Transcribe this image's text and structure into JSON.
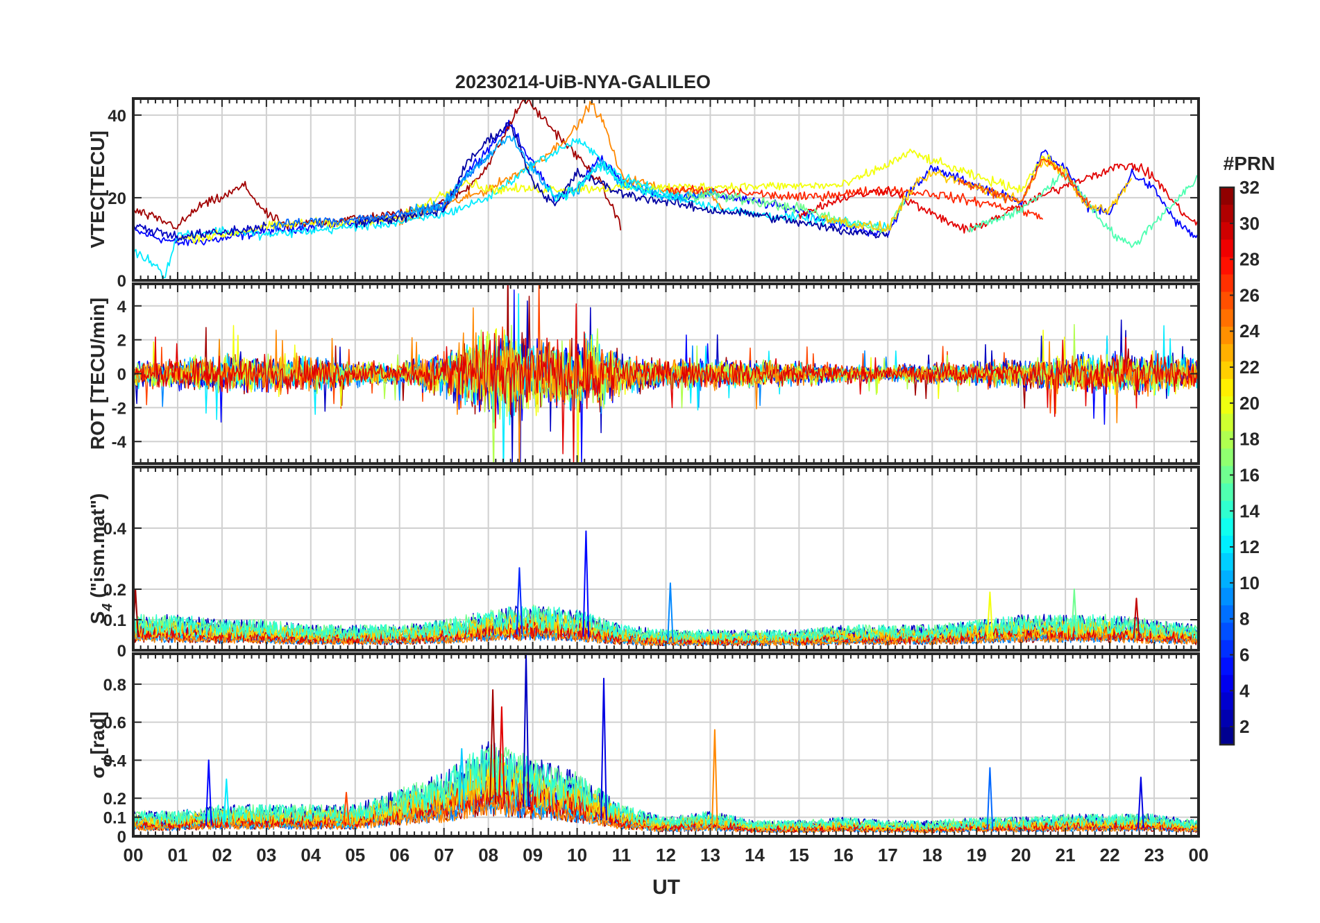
{
  "figure": {
    "title": "20230214-UiB-NYA-GALILEO",
    "x_axis_label": "UT",
    "x_tick_labels": [
      "00",
      "01",
      "02",
      "03",
      "04",
      "05",
      "06",
      "07",
      "08",
      "09",
      "10",
      "11",
      "12",
      "13",
      "14",
      "15",
      "16",
      "17",
      "18",
      "19",
      "20",
      "21",
      "22",
      "23",
      "00"
    ]
  },
  "colorbar": {
    "title": "#PRN",
    "tick_values": [
      2,
      4,
      6,
      8,
      10,
      12,
      14,
      16,
      18,
      20,
      22,
      24,
      26,
      28,
      30,
      32
    ],
    "range": [
      1,
      32
    ],
    "colormap": "jet",
    "colors": [
      "#000080",
      "#0000ff",
      "#0080ff",
      "#00ffff",
      "#80ff80",
      "#ffff00",
      "#ff8000",
      "#ff0000",
      "#800000"
    ]
  },
  "chart_data": [
    {
      "id": "vtec",
      "type": "line",
      "ylabel": "VTEC[TECU]",
      "ylim": [
        0,
        44
      ],
      "yticks": [
        0,
        20,
        40
      ],
      "xlim": [
        0,
        24
      ],
      "grid": true,
      "series_summary": "one line per Galileo PRN (1-32), colored by PRN",
      "series": [
        {
          "prn": 5,
          "x": [
            0,
            1,
            2,
            3,
            4,
            5,
            6,
            7,
            7.5,
            8,
            8.5,
            9,
            9.5,
            10,
            10.5,
            11,
            12,
            13,
            14,
            15,
            16,
            17,
            17.5,
            18,
            19,
            20,
            20.5,
            21,
            21.5,
            22,
            22.5,
            23,
            23.5,
            24
          ],
          "y": [
            12,
            9,
            10,
            12,
            13,
            14,
            15,
            18,
            26,
            32,
            38,
            28,
            20,
            22,
            30,
            24,
            20,
            21,
            19,
            17,
            13,
            11,
            22,
            27,
            23,
            19,
            31,
            27,
            18,
            16,
            26,
            22,
            14,
            10
          ]
        },
        {
          "prn": 31,
          "x": [
            0,
            0.5,
            1,
            1.5,
            2,
            2.5,
            3,
            3.5,
            4,
            5,
            6,
            7,
            7.5,
            8,
            8.5,
            8.8,
            9,
            9.5,
            10,
            10.5,
            11
          ],
          "y": [
            17,
            15,
            13,
            18,
            20,
            23,
            16,
            13,
            14,
            15,
            16,
            19,
            22,
            28,
            38,
            44,
            42,
            36,
            30,
            24,
            13
          ]
        },
        {
          "prn": 24,
          "x": [
            6,
            7,
            8,
            8.5,
            9,
            9.5,
            10,
            10.3,
            10.6,
            11,
            12,
            13,
            13.3
          ],
          "y": [
            14,
            18,
            22,
            25,
            28,
            32,
            37,
            43,
            38,
            25,
            22,
            21,
            17
          ]
        },
        {
          "prn": 12,
          "x": [
            0,
            0.5,
            0.7,
            1,
            2,
            3,
            4,
            5,
            6,
            7,
            8,
            9,
            10,
            11,
            12,
            13,
            14,
            15,
            16,
            17
          ],
          "y": [
            7,
            4,
            1,
            11,
            12,
            11,
            12,
            13,
            14,
            16,
            20,
            28,
            34,
            25,
            21,
            18,
            16,
            15,
            14,
            13
          ]
        },
        {
          "prn": 20,
          "x": [
            1,
            2,
            3,
            4,
            5,
            6,
            6.5,
            7,
            7.5,
            8,
            16,
            17,
            17.5,
            18,
            19,
            20,
            20.5,
            21
          ],
          "y": [
            10,
            11,
            13,
            14,
            14,
            15,
            18,
            21,
            24,
            22,
            23,
            28,
            31,
            29,
            25,
            22,
            30,
            26
          ]
        },
        {
          "prn": 27,
          "x": [
            12,
            14,
            15,
            16,
            17,
            18,
            19,
            20,
            20.5
          ],
          "y": [
            22,
            21,
            20,
            21,
            22,
            21,
            19,
            17,
            15
          ]
        },
        {
          "prn": 2,
          "x": [
            5,
            6,
            7,
            7.5,
            8,
            8.5,
            9,
            9.5,
            10,
            11,
            12,
            13,
            14,
            15,
            15.5,
            16,
            17
          ],
          "y": [
            14,
            15,
            17,
            28,
            34,
            38,
            24,
            18,
            26,
            21,
            19,
            17,
            16,
            14,
            13,
            12,
            11
          ]
        },
        {
          "prn": 29,
          "x": [
            15,
            16,
            17,
            18,
            18.8,
            19,
            20,
            21,
            22,
            22.5,
            23,
            23.5,
            24
          ],
          "y": [
            16,
            20,
            22,
            16,
            12,
            13,
            18,
            23,
            27,
            28,
            25,
            18,
            13
          ]
        },
        {
          "prn": 15,
          "x": [
            18.8,
            19,
            20,
            21,
            22,
            22.5,
            23,
            24
          ],
          "y": [
            12,
            13,
            17,
            26,
            12,
            8,
            14,
            25
          ]
        }
      ]
    },
    {
      "id": "rot",
      "type": "line",
      "ylabel": "ROT [TECU/min]",
      "ylim": [
        -5.3,
        5.3
      ],
      "yticks": [
        -4,
        -2,
        0,
        2,
        4
      ],
      "xlim": [
        0,
        24
      ],
      "grid": true,
      "series_summary": "rate of TEC per PRN; activity strongest 07-11 UT with spikes beyond ±5",
      "envelope": {
        "x": [
          0,
          1,
          2,
          3,
          4,
          5,
          6,
          7,
          7.5,
          8,
          8.5,
          9,
          9.5,
          10,
          10.5,
          11,
          12,
          13,
          14,
          15,
          16,
          17,
          18,
          19,
          20,
          21,
          22,
          23,
          24
        ],
        "amplitude": [
          1.4,
          1.8,
          2.2,
          2.2,
          2.0,
          1.5,
          1.2,
          2.8,
          4.5,
          5.3,
          5.3,
          4.5,
          4.0,
          4.5,
          4.5,
          2.5,
          1.6,
          1.8,
          1.6,
          1.4,
          1.0,
          1.0,
          1.2,
          1.4,
          1.6,
          2.2,
          2.4,
          2.6,
          1.6
        ]
      }
    },
    {
      "id": "s4",
      "type": "line",
      "ylabel": "S",
      "ylabel_subscript": "4",
      "ylabel_suffix": " (\"ism.mat\")",
      "ylim": [
        0,
        0.6
      ],
      "yticks": [
        0,
        0.1,
        0.2,
        0.4
      ],
      "xlim": [
        0,
        24
      ],
      "grid": true,
      "series_summary": "amplitude scintillation index per PRN",
      "peaks": [
        {
          "prn": 5,
          "x": 10.2,
          "y": 0.39
        },
        {
          "prn": 6,
          "x": 8.7,
          "y": 0.27
        },
        {
          "prn": 9,
          "x": 12.1,
          "y": 0.22
        },
        {
          "prn": 31,
          "x": 0.05,
          "y": 0.2
        },
        {
          "prn": 20,
          "x": 19.3,
          "y": 0.19
        },
        {
          "prn": 16,
          "x": 21.2,
          "y": 0.2
        },
        {
          "prn": 30,
          "x": 22.6,
          "y": 0.17
        }
      ],
      "baseline": {
        "x": [
          0,
          1,
          2,
          3,
          4,
          5,
          6,
          7,
          8,
          9,
          10,
          11,
          12,
          13,
          14,
          15,
          16,
          17,
          18,
          19,
          20,
          21,
          22,
          23,
          24
        ],
        "level": [
          0.07,
          0.07,
          0.06,
          0.06,
          0.05,
          0.05,
          0.05,
          0.06,
          0.08,
          0.09,
          0.08,
          0.05,
          0.04,
          0.04,
          0.04,
          0.04,
          0.05,
          0.05,
          0.05,
          0.06,
          0.07,
          0.07,
          0.07,
          0.06,
          0.05
        ]
      }
    },
    {
      "id": "sigma_phi",
      "type": "line",
      "ylabel": "σ",
      "ylabel_subscript": "ϕ",
      "ylabel_suffix": "[rad]",
      "ylim": [
        0,
        0.96
      ],
      "yticks": [
        0,
        0.1,
        0.2,
        0.4,
        0.6,
        0.8
      ],
      "xlim": [
        0,
        24
      ],
      "grid": true,
      "series_summary": "phase scintillation index per PRN",
      "peaks": [
        {
          "prn": 3,
          "x": 8.85,
          "y": 0.96
        },
        {
          "prn": 4,
          "x": 10.6,
          "y": 0.83
        },
        {
          "prn": 31,
          "x": 8.1,
          "y": 0.77
        },
        {
          "prn": 29,
          "x": 8.3,
          "y": 0.68
        },
        {
          "prn": 24,
          "x": 13.1,
          "y": 0.56
        },
        {
          "prn": 11,
          "x": 7.4,
          "y": 0.46
        },
        {
          "prn": 5,
          "x": 1.7,
          "y": 0.4
        },
        {
          "prn": 8,
          "x": 19.3,
          "y": 0.36
        },
        {
          "prn": 4,
          "x": 22.7,
          "y": 0.31
        },
        {
          "prn": 12,
          "x": 2.1,
          "y": 0.3
        },
        {
          "prn": 26,
          "x": 4.8,
          "y": 0.23
        }
      ],
      "baseline": {
        "x": [
          0,
          1,
          2,
          3,
          4,
          5,
          6,
          7,
          8,
          9,
          10,
          11,
          12,
          13,
          14,
          15,
          16,
          17,
          18,
          19,
          20,
          21,
          22,
          23,
          24
        ],
        "level": [
          0.08,
          0.08,
          0.1,
          0.1,
          0.1,
          0.1,
          0.15,
          0.2,
          0.3,
          0.25,
          0.2,
          0.1,
          0.06,
          0.08,
          0.05,
          0.05,
          0.06,
          0.05,
          0.05,
          0.06,
          0.06,
          0.07,
          0.07,
          0.07,
          0.05
        ]
      }
    }
  ]
}
